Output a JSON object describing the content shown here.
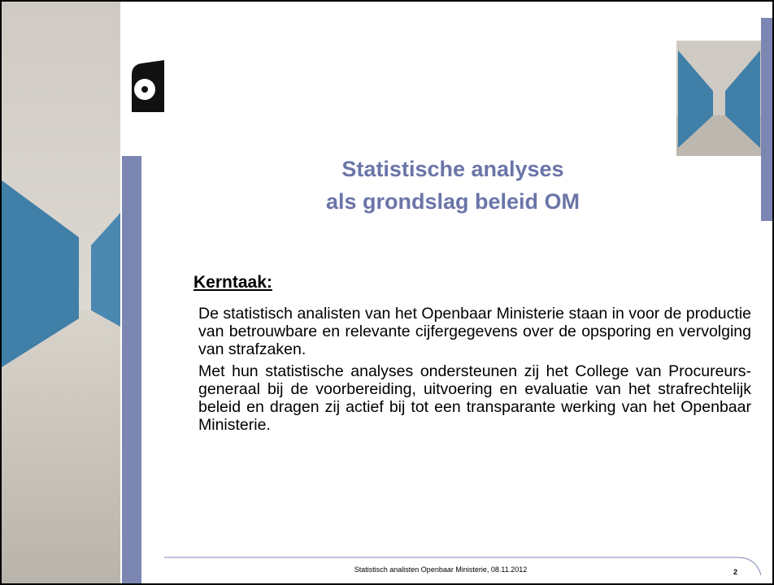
{
  "slide": {
    "title": [
      "Statistische analyses",
      "als grondslag beleid OM"
    ],
    "heading": "Kerntaak:",
    "paragraphs": [
      "De statistisch analisten van het Openbaar Ministerie staan in voor de productie van betrouwbare en relevante cijfergegevens over de opsporing en vervolging van strafzaken.",
      "Met hun statistische analyses ondersteunen zij het College van Procureurs-generaal bij de voorbereiding, uitvoering en evaluatie van het strafrechtelijk beleid en dragen zij actief bij tot een transparante werking van het Openbaar Ministerie."
    ],
    "footer": "Statistisch analisten Openbaar Ministerie, 08.11.2012",
    "page_number": "2"
  }
}
